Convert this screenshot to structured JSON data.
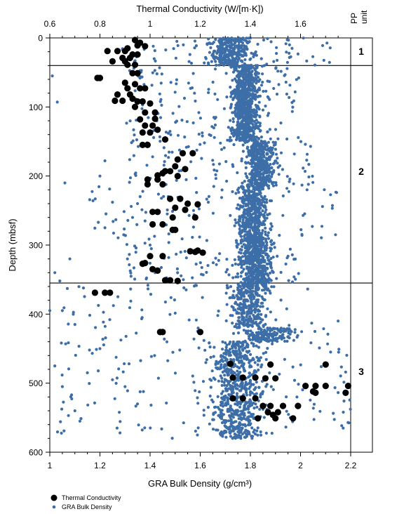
{
  "chart_data": {
    "type": "scatter",
    "top_axis": {
      "label": "Thermal Conductivity (W/[m·K])",
      "range": [
        0.6,
        1.8
      ],
      "ticks": [
        "0.6",
        "0.8",
        "1",
        "1.2",
        "1.4",
        "1.6"
      ],
      "tick_values": [
        0.6,
        0.8,
        1.0,
        1.2,
        1.4,
        1.6
      ]
    },
    "bottom_axis": {
      "label": "GRA Bulk Density (g/cm³)",
      "range": [
        1.0,
        2.2
      ],
      "ticks": [
        "1",
        "1.2",
        "1.4",
        "1.6",
        "1.8",
        "2",
        "2.2"
      ],
      "tick_values": [
        1.0,
        1.2,
        1.4,
        1.6,
        1.8,
        2.0,
        2.2
      ]
    },
    "y_axis": {
      "label": "Depth (mbsf)",
      "range": [
        0,
        600
      ],
      "inverted": true,
      "ticks": [
        "0",
        "100",
        "200",
        "300",
        "400",
        "500",
        "600"
      ],
      "tick_values": [
        0,
        100,
        200,
        300,
        400,
        500,
        600
      ]
    },
    "pp_units": {
      "header_line1": "PP",
      "header_line2": "unit",
      "boundaries": [
        40,
        355
      ],
      "units": [
        {
          "label": "1",
          "depth": 20
        },
        {
          "label": "2",
          "depth": 195
        },
        {
          "label": "3",
          "depth": 485
        }
      ]
    },
    "series": [
      {
        "name": "Thermal Conductivity",
        "color": "#000000",
        "marker": "large-filled-circle",
        "axis": "top",
        "points": [
          [
            0.94,
            3
          ],
          [
            0.96,
            7
          ],
          [
            0.95,
            11
          ],
          [
            0.98,
            12
          ],
          [
            0.91,
            15
          ],
          [
            0.83,
            19
          ],
          [
            0.87,
            19
          ],
          [
            0.9,
            19
          ],
          [
            0.93,
            24
          ],
          [
            0.95,
            24
          ],
          [
            0.89,
            29
          ],
          [
            0.92,
            29
          ],
          [
            0.85,
            34
          ],
          [
            0.9,
            34
          ],
          [
            0.91,
            39
          ],
          [
            0.94,
            39
          ],
          [
            0.79,
            58
          ],
          [
            0.8,
            58
          ],
          [
            0.93,
            51
          ],
          [
            0.95,
            51
          ],
          [
            0.9,
            65
          ],
          [
            0.94,
            67
          ],
          [
            0.91,
            73
          ],
          [
            0.96,
            73
          ],
          [
            0.98,
            73
          ],
          [
            0.87,
            82
          ],
          [
            0.92,
            82
          ],
          [
            0.86,
            91
          ],
          [
            0.89,
            91
          ],
          [
            0.93,
            88
          ],
          [
            0.95,
            92
          ],
          [
            0.97,
            92
          ],
          [
            0.94,
            100
          ],
          [
            1.0,
            95
          ],
          [
            0.98,
            108
          ],
          [
            1.02,
            108
          ],
          [
            0.96,
            118
          ],
          [
            1.02,
            117
          ],
          [
            0.98,
            127
          ],
          [
            1.01,
            127
          ],
          [
            0.97,
            137
          ],
          [
            1.0,
            137
          ],
          [
            1.03,
            133
          ],
          [
            0.97,
            155
          ],
          [
            0.99,
            155
          ],
          [
            1.06,
            147
          ],
          [
            1.13,
            167
          ],
          [
            1.17,
            167
          ],
          [
            1.11,
            176
          ],
          [
            1.1,
            186
          ],
          [
            1.14,
            190
          ],
          [
            1.06,
            193
          ],
          [
            1.08,
            193
          ],
          [
            1.03,
            199
          ],
          [
            1.05,
            196
          ],
          [
            1.11,
            200
          ],
          [
            0.99,
            205
          ],
          [
            1.03,
            205
          ],
          [
            1.05,
            212
          ],
          [
            0.99,
            212
          ],
          [
            1.12,
            233
          ],
          [
            1.08,
            233
          ],
          [
            1.15,
            240
          ],
          [
            1.19,
            241
          ],
          [
            1.1,
            246
          ],
          [
            1.14,
            249
          ],
          [
            1.01,
            252
          ],
          [
            1.03,
            252
          ],
          [
            1.09,
            260
          ],
          [
            1.18,
            260
          ],
          [
            1.05,
            270
          ],
          [
            1.01,
            270
          ],
          [
            1.09,
            278
          ],
          [
            1.1,
            278
          ],
          [
            1.16,
            309
          ],
          [
            1.18,
            310
          ],
          [
            1.19,
            308
          ],
          [
            1.21,
            311
          ],
          [
            1.0,
            316
          ],
          [
            1.05,
            316
          ],
          [
            0.97,
            327
          ],
          [
            0.98,
            326
          ],
          [
            1.01,
            335
          ],
          [
            1.03,
            337
          ],
          [
            1.06,
            351
          ],
          [
            1.08,
            351
          ],
          [
            1.11,
            352
          ],
          [
            0.78,
            369
          ],
          [
            0.82,
            369
          ],
          [
            0.84,
            369
          ],
          [
            1.04,
            426
          ],
          [
            1.05,
            426
          ],
          [
            1.2,
            426
          ],
          [
            1.32,
            472
          ],
          [
            1.48,
            473
          ],
          [
            1.7,
            473
          ],
          [
            1.33,
            492
          ],
          [
            1.37,
            492
          ],
          [
            1.42,
            492
          ],
          [
            1.46,
            493
          ],
          [
            1.5,
            493
          ],
          [
            1.62,
            504
          ],
          [
            1.66,
            504
          ],
          [
            1.7,
            504
          ],
          [
            1.78,
            514
          ],
          [
            1.66,
            514
          ],
          [
            1.79,
            504
          ],
          [
            1.65,
            512
          ],
          [
            1.33,
            522
          ],
          [
            1.37,
            522
          ],
          [
            1.42,
            522
          ],
          [
            1.53,
            533
          ],
          [
            1.45,
            533
          ],
          [
            1.48,
            533
          ],
          [
            1.59,
            533
          ],
          [
            1.47,
            542
          ],
          [
            1.51,
            542
          ],
          [
            1.49,
            546
          ],
          [
            1.43,
            551
          ],
          [
            1.5,
            551
          ],
          [
            1.57,
            551
          ]
        ]
      },
      {
        "name": "GRA Bulk Density",
        "color": "#3d6ea8",
        "marker": "small-filled-circle",
        "axis": "bottom",
        "segments": [
          {
            "d0": 0,
            "d1": 40,
            "core": [
              1.6,
              1.84
            ],
            "spread": [
              1.28,
              2.12
            ],
            "step": 1.0
          },
          {
            "d0": 40,
            "d1": 150,
            "core": [
              1.7,
              1.86
            ],
            "spread": [
              1.3,
              2.0
            ],
            "step": 1.0
          },
          {
            "d0": 150,
            "d1": 215,
            "core": [
              1.76,
              1.92
            ],
            "spread": [
              1.3,
              2.05
            ],
            "step": 1.0
          },
          {
            "d0": 215,
            "d1": 290,
            "core": [
              1.72,
              1.9
            ],
            "spread": [
              1.15,
              2.15
            ],
            "step": 1.2
          },
          {
            "d0": 290,
            "d1": 360,
            "core": [
              1.72,
              1.92
            ],
            "spread": [
              1.3,
              2.0
            ],
            "step": 1.0
          },
          {
            "d0": 360,
            "d1": 420,
            "core": [
              1.68,
              1.9
            ],
            "spread": [
              1.02,
              2.05
            ],
            "step": 1.6
          },
          {
            "d0": 420,
            "d1": 440,
            "core": [
              1.72,
              2.02
            ],
            "spread": [
              1.2,
              2.15
            ],
            "step": 1.0
          },
          {
            "d0": 440,
            "d1": 580,
            "core": [
              1.6,
              1.9
            ],
            "spread": [
              1.02,
              2.2
            ],
            "step": 1.5
          }
        ],
        "outliers": [
          [
            1.01,
            55
          ],
          [
            1.03,
            93
          ],
          [
            1.06,
            210
          ],
          [
            1.2,
            200
          ],
          [
            1.22,
            178
          ],
          [
            1.25,
            238
          ],
          [
            1.22,
            275
          ],
          [
            1.08,
            320
          ],
          [
            1.02,
            340
          ],
          [
            1.04,
            352
          ],
          [
            1.05,
            395
          ],
          [
            1.07,
            363
          ],
          [
            1.0,
            395
          ],
          [
            1.1,
            415
          ],
          [
            1.02,
            475
          ],
          [
            1.05,
            505
          ],
          [
            1.1,
            540
          ],
          [
            1.12,
            555
          ],
          [
            1.15,
            485
          ],
          [
            1.2,
            450
          ],
          [
            1.25,
            495
          ],
          [
            1.28,
            572
          ],
          [
            1.3,
            505
          ],
          [
            1.35,
            530
          ],
          [
            2.15,
            410
          ],
          [
            2.12,
            455
          ],
          [
            2.18,
            484
          ],
          [
            2.17,
            565
          ],
          [
            1.35,
            240
          ],
          [
            1.33,
            260
          ],
          [
            1.38,
            265
          ],
          [
            1.4,
            300
          ],
          [
            1.42,
            340
          ]
        ]
      }
    ],
    "legend": {
      "placement": "bottom-left",
      "entries": [
        "Thermal Conductivity",
        "GRA Bulk Density"
      ]
    },
    "grid": false
  }
}
